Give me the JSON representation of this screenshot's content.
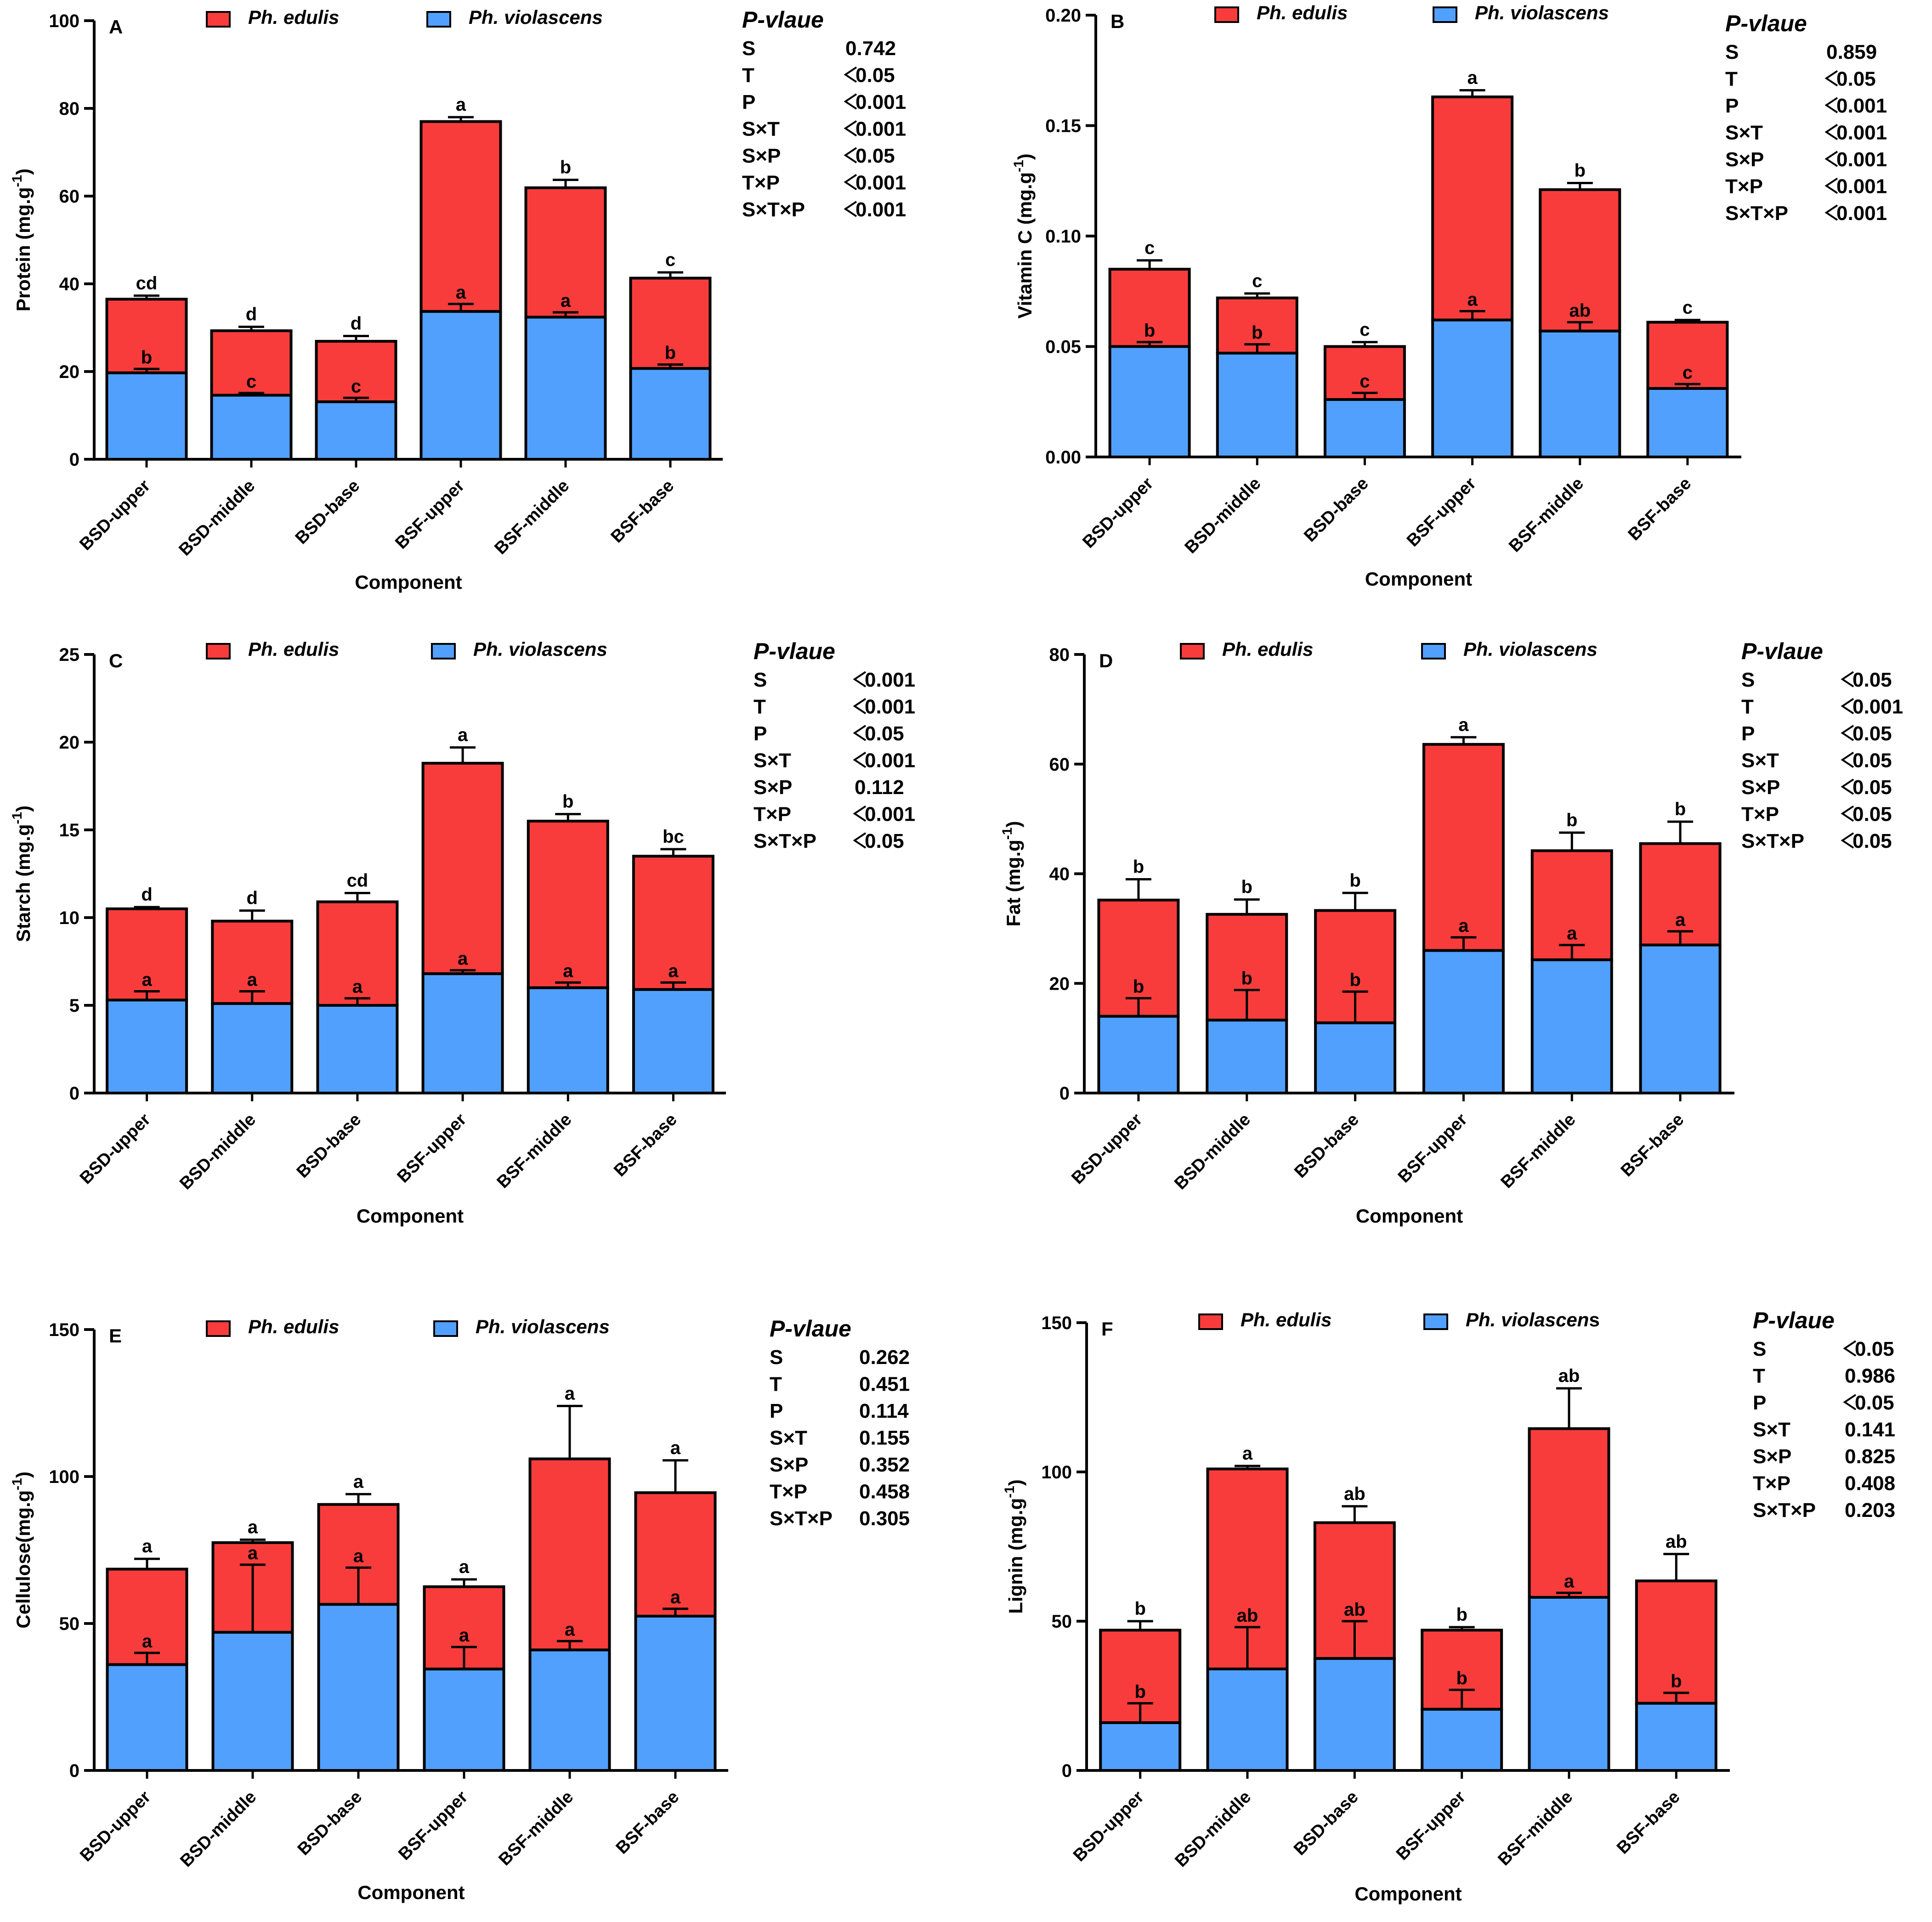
{
  "colors": {
    "edulis": "#f83c3c",
    "violascens": "#52a0fd",
    "stroke": "#000000"
  },
  "common": {
    "categories": [
      "BSD-upper",
      "BSD-middle",
      "BSD-base",
      "BSF-upper",
      "BSF-middle",
      "BSF-base"
    ],
    "xlabel": "Component",
    "legend_edulis": "Ph. edulis",
    "legend_violascens": "Ph. violascens",
    "pvalue_title": "P-vlaue",
    "pvalue_terms": [
      "S",
      "T",
      "P",
      "S×T",
      "S×P",
      "T×P",
      "S×T×P"
    ]
  },
  "chart_data": [
    {
      "type": "bar",
      "stacked": true,
      "panel": "A",
      "ylabel": "Protein (mg.g",
      "ylabel_sup": "-1",
      "ylabel_close": ")",
      "ylim": [
        0,
        100
      ],
      "yticks": [
        0,
        20,
        40,
        60,
        80,
        100
      ],
      "tick_labels": [
        "0",
        "20",
        "40",
        "60",
        "80",
        "100"
      ],
      "legend_violascens": "Ph. violascens",
      "series": [
        {
          "name": "Ph. violascens",
          "values": [
            19.7,
            14.6,
            13.1,
            33.7,
            32.4,
            20.7
          ],
          "errors": [
            0.9,
            0.5,
            0.9,
            1.7,
            1.1,
            0.9
          ],
          "letters": [
            "b",
            "c",
            "c",
            "a",
            "a",
            "b"
          ]
        },
        {
          "name": "Ph. edulis",
          "totals": [
            36.5,
            29.3,
            26.9,
            77.0,
            61.9,
            41.3
          ],
          "errors": [
            0.8,
            0.9,
            1.2,
            1.0,
            1.8,
            1.3
          ],
          "letters": [
            "cd",
            "d",
            "d",
            "a",
            "b",
            "c"
          ]
        }
      ],
      "pvalues": [
        "0.742",
        "0.05",
        "0.001",
        "0.001",
        "0.05",
        "0.001",
        "0.001"
      ],
      "pvalue_lt": [
        false,
        true,
        true,
        true,
        true,
        true,
        true
      ]
    },
    {
      "type": "bar",
      "stacked": true,
      "panel": "B",
      "ylabel": "Vitamin C (mg.g",
      "ylabel_sup": "-1",
      "ylabel_close": ")",
      "ylim": [
        0,
        0.2
      ],
      "yticks": [
        0,
        0.05,
        0.1,
        0.15,
        0.2
      ],
      "tick_labels": [
        "0.00",
        "0.05",
        "0.10",
        "0.15",
        "0.20"
      ],
      "legend_violascens": "Ph. violascens",
      "series": [
        {
          "name": "Ph. violascens",
          "values": [
            0.05,
            0.047,
            0.026,
            0.062,
            0.057,
            0.031
          ],
          "errors": [
            0.002,
            0.004,
            0.003,
            0.004,
            0.004,
            0.002
          ],
          "letters": [
            "b",
            "b",
            "c",
            "a",
            "ab",
            "c"
          ]
        },
        {
          "name": "Ph. edulis",
          "totals": [
            0.085,
            0.072,
            0.05,
            0.163,
            0.121,
            0.061
          ],
          "errors": [
            0.004,
            0.002,
            0.002,
            0.003,
            0.003,
            0.001
          ],
          "letters": [
            "c",
            "c",
            "c",
            "a",
            "b",
            "c"
          ]
        }
      ],
      "pvalues": [
        "0.859",
        "0.05",
        "0.001",
        "0.001",
        "0.001",
        "0.001",
        "0.001"
      ],
      "pvalue_lt": [
        false,
        true,
        true,
        true,
        true,
        true,
        true
      ]
    },
    {
      "type": "bar",
      "stacked": true,
      "panel": "C",
      "ylabel": "Starch (mg.g",
      "ylabel_sup": "-1",
      "ylabel_close": ")",
      "ylim": [
        0,
        25
      ],
      "yticks": [
        0,
        5,
        10,
        15,
        20,
        25
      ],
      "tick_labels": [
        "0",
        "5",
        "10",
        "15",
        "20",
        "25"
      ],
      "legend_violascens": "Ph. violascens",
      "series": [
        {
          "name": "Ph. violascens",
          "values": [
            5.3,
            5.1,
            5.0,
            6.8,
            6.0,
            5.9
          ],
          "errors": [
            0.5,
            0.7,
            0.4,
            0.2,
            0.3,
            0.4
          ],
          "letters": [
            "a",
            "a",
            "a",
            "a",
            "a",
            "a"
          ]
        },
        {
          "name": "Ph. edulis",
          "totals": [
            10.5,
            9.8,
            10.9,
            18.8,
            15.5,
            13.5
          ],
          "errors": [
            0.1,
            0.6,
            0.5,
            0.9,
            0.4,
            0.4
          ],
          "letters": [
            "d",
            "d",
            "cd",
            "a",
            "b",
            "bc"
          ]
        }
      ],
      "pvalues": [
        "0.001",
        "0.001",
        "0.05",
        "0.001",
        "0.112",
        "0.001",
        "0.05"
      ],
      "pvalue_lt": [
        true,
        true,
        true,
        true,
        false,
        true,
        true
      ]
    },
    {
      "type": "bar",
      "stacked": true,
      "panel": "D",
      "ylabel": "Fat (mg.g",
      "ylabel_sup": "-1",
      "ylabel_close": ")",
      "ylim": [
        0,
        80
      ],
      "yticks": [
        0,
        20,
        40,
        60,
        80
      ],
      "tick_labels": [
        "0",
        "20",
        "40",
        "60",
        "80"
      ],
      "legend_violascens": "Ph. violascens",
      "series": [
        {
          "name": "Ph. violascens",
          "values": [
            14.0,
            13.3,
            12.8,
            26.0,
            24.3,
            27.0
          ],
          "errors": [
            3.3,
            5.5,
            5.7,
            2.4,
            2.7,
            2.5
          ],
          "letters": [
            "b",
            "b",
            "b",
            "a",
            "a",
            "a"
          ]
        },
        {
          "name": "Ph. edulis",
          "totals": [
            35.2,
            32.6,
            33.3,
            63.6,
            44.2,
            45.5
          ],
          "errors": [
            3.8,
            2.7,
            3.2,
            1.3,
            3.3,
            4.0
          ],
          "letters": [
            "b",
            "b",
            "b",
            "a",
            "b",
            "b"
          ]
        }
      ],
      "pvalues": [
        "0.05",
        "0.001",
        "0.05",
        "0.05",
        "0.05",
        "0.05",
        "0.05"
      ],
      "pvalue_lt": [
        true,
        true,
        true,
        true,
        true,
        true,
        true
      ]
    },
    {
      "type": "bar",
      "stacked": true,
      "panel": "E",
      "ylabel": "Cellulose(mg.g",
      "ylabel_sup": "-1",
      "ylabel_close": ")",
      "ylim": [
        0,
        150
      ],
      "yticks": [
        0,
        50,
        100,
        150
      ],
      "tick_labels": [
        "0",
        "50",
        "100",
        "150"
      ],
      "legend_violascens": "Ph. violascens",
      "series": [
        {
          "name": "Ph. violascens",
          "values": [
            36,
            47,
            56.5,
            34.5,
            41,
            52.5
          ],
          "errors": [
            4,
            23,
            12.5,
            7.5,
            3,
            2.5
          ],
          "letters": [
            "a",
            "a",
            "a",
            "a",
            "a",
            "a"
          ]
        },
        {
          "name": "Ph. edulis",
          "totals": [
            68.5,
            77.5,
            90.5,
            62.5,
            106,
            94.5
          ],
          "errors": [
            3.5,
            1,
            3.5,
            2.5,
            18,
            11
          ],
          "letters": [
            "a",
            "a",
            "a",
            "a",
            "a",
            "a"
          ]
        }
      ],
      "pvalues": [
        "0.262",
        "0.451",
        "0.114",
        "0.155",
        "0.352",
        "0.458",
        "0.305"
      ],
      "pvalue_lt": [
        false,
        false,
        false,
        false,
        false,
        false,
        false
      ]
    },
    {
      "type": "bar",
      "stacked": true,
      "panel": "F",
      "ylabel": "Lignin (mg.g",
      "ylabel_sup": "-1",
      "ylabel_close": ")",
      "ylim": [
        0,
        150
      ],
      "yticks": [
        0,
        50,
        100,
        150
      ],
      "tick_labels": [
        "0",
        "50",
        "100",
        "150"
      ],
      "legend_violascens": "Ph. violascen",
      "legend_violascens_tail": "s",
      "series": [
        {
          "name": "Ph. violascens",
          "values": [
            16,
            34,
            37.5,
            20.5,
            58,
            22.5
          ],
          "errors": [
            6.5,
            14,
            12.5,
            6.5,
            1.5,
            3.5
          ],
          "letters": [
            "b",
            "ab",
            "ab",
            "b",
            "a",
            "b"
          ]
        },
        {
          "name": "Ph. edulis",
          "totals": [
            47,
            101,
            83,
            47,
            114.5,
            63.5
          ],
          "errors": [
            3,
            1,
            5.5,
            1,
            13.5,
            9
          ],
          "letters": [
            "b",
            "a",
            "ab",
            "b",
            "ab",
            "ab"
          ]
        }
      ],
      "pvalues": [
        "0.05",
        "0.986",
        "0.05",
        "0.141",
        "0.825",
        "0.408",
        "0.203"
      ],
      "pvalue_lt": [
        true,
        false,
        true,
        false,
        false,
        false,
        false
      ]
    }
  ]
}
